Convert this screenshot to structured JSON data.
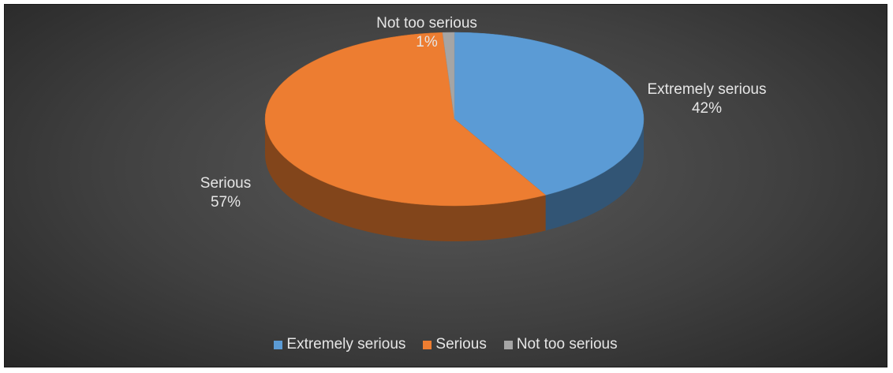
{
  "chart_data": {
    "type": "pie",
    "style": "3d",
    "categories": [
      "Extremely serious",
      "Serious",
      "Not too serious"
    ],
    "values": [
      42,
      57,
      1
    ],
    "value_labels": [
      "42%",
      "57%",
      "1%"
    ],
    "colors": [
      "#5b9bd5",
      "#ed7d31",
      "#a5a5a5"
    ],
    "legend": {
      "position": "bottom",
      "items": [
        "Extremely serious",
        "Serious",
        "Not too serious"
      ]
    }
  }
}
